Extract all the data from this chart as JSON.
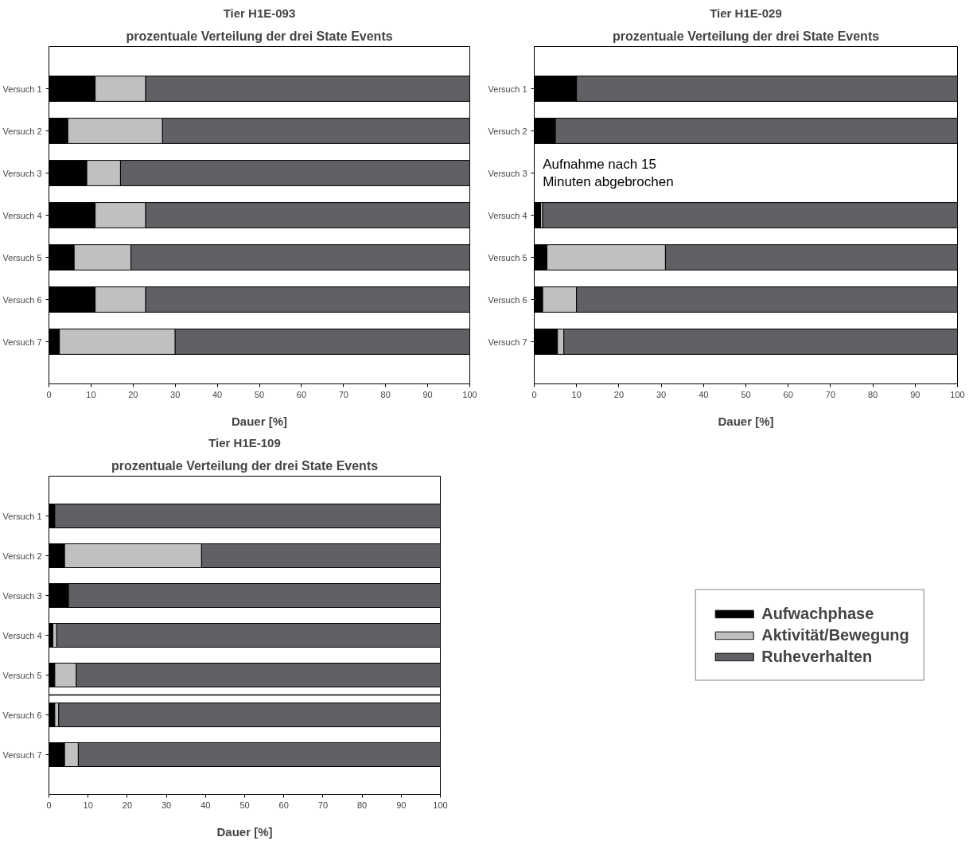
{
  "chart_data": [
    {
      "type": "bar",
      "orientation": "horizontal",
      "stacked": true,
      "title": "Tier H1E-093",
      "subtitle": "prozentuale Verteilung der drei State Events",
      "xlabel": "Dauer [%]",
      "categories": [
        "Versuch 1",
        "Versuch 2",
        "Versuch 3",
        "Versuch 4",
        "Versuch 5",
        "Versuch 6",
        "Versuch 7"
      ],
      "series": [
        {
          "color": "#000000",
          "values": [
            11,
            4.5,
            9,
            11,
            6,
            11,
            2.5
          ]
        },
        {
          "color": "#c0c0c0",
          "values": [
            12,
            22.5,
            8,
            12,
            13.5,
            12,
            27.5
          ]
        },
        {
          "color": "#616064",
          "values": [
            77,
            73,
            83,
            77,
            80.5,
            77,
            70
          ]
        }
      ],
      "xlim": [
        0,
        100
      ],
      "xticks": [
        0,
        10,
        20,
        30,
        40,
        50,
        60,
        70,
        80,
        90,
        100
      ],
      "legend": false,
      "grid": false
    },
    {
      "type": "bar",
      "orientation": "horizontal",
      "stacked": true,
      "title": "Tier H1E-029",
      "subtitle": "prozentuale Verteilung der drei State Events",
      "xlabel": "Dauer [%]",
      "categories": [
        "Versuch 1",
        "Versuch 2",
        "Versuch 3",
        "Versuch 4",
        "Versuch 5",
        "Versuch 6",
        "Versuch 7"
      ],
      "series": [
        {
          "color": "#000000",
          "values": [
            10,
            5,
            null,
            1.5,
            3,
            2,
            5.5
          ]
        },
        {
          "color": "#c0c0c0",
          "values": [
            0,
            0,
            null,
            0.5,
            28,
            8,
            1.5
          ]
        },
        {
          "color": "#616064",
          "values": [
            90,
            95,
            null,
            98,
            69,
            90,
            93
          ]
        }
      ],
      "annotations": [
        "Aufnahme nach 15\nMinuten abgebrochen"
      ],
      "xlim": [
        0,
        100
      ],
      "xticks": [
        0,
        10,
        20,
        30,
        40,
        50,
        60,
        70,
        80,
        90,
        100
      ],
      "legend": false,
      "grid": false
    },
    {
      "type": "bar",
      "orientation": "horizontal",
      "stacked": true,
      "title": "Tier H1E-109",
      "subtitle": "prozentuale Verteilung der drei State Events",
      "xlabel": "Dauer [%]",
      "categories": [
        "Versuch 1",
        "Versuch 2",
        "Versuch 3",
        "Versuch 4",
        "Versuch 5",
        "Versuch 6",
        "Versuch 7"
      ],
      "series": [
        {
          "name": "Aufwachphase",
          "color": "#000000",
          "values": [
            1.5,
            4,
            5,
            1,
            1.5,
            1.5,
            4
          ]
        },
        {
          "name": "Aktivität/Bewegung",
          "color": "#c0c0c0",
          "values": [
            0,
            35,
            0,
            1,
            5.5,
            1,
            3.5
          ]
        },
        {
          "name": "Ruheverhalten",
          "color": "#616064",
          "values": [
            98.5,
            61,
            95,
            98,
            93,
            97.5,
            92.5
          ]
        }
      ],
      "xlim": [
        0,
        100
      ],
      "xticks": [
        0,
        10,
        20,
        30,
        40,
        50,
        60,
        70,
        80,
        90,
        100
      ],
      "legend": "right",
      "grid": false
    }
  ]
}
